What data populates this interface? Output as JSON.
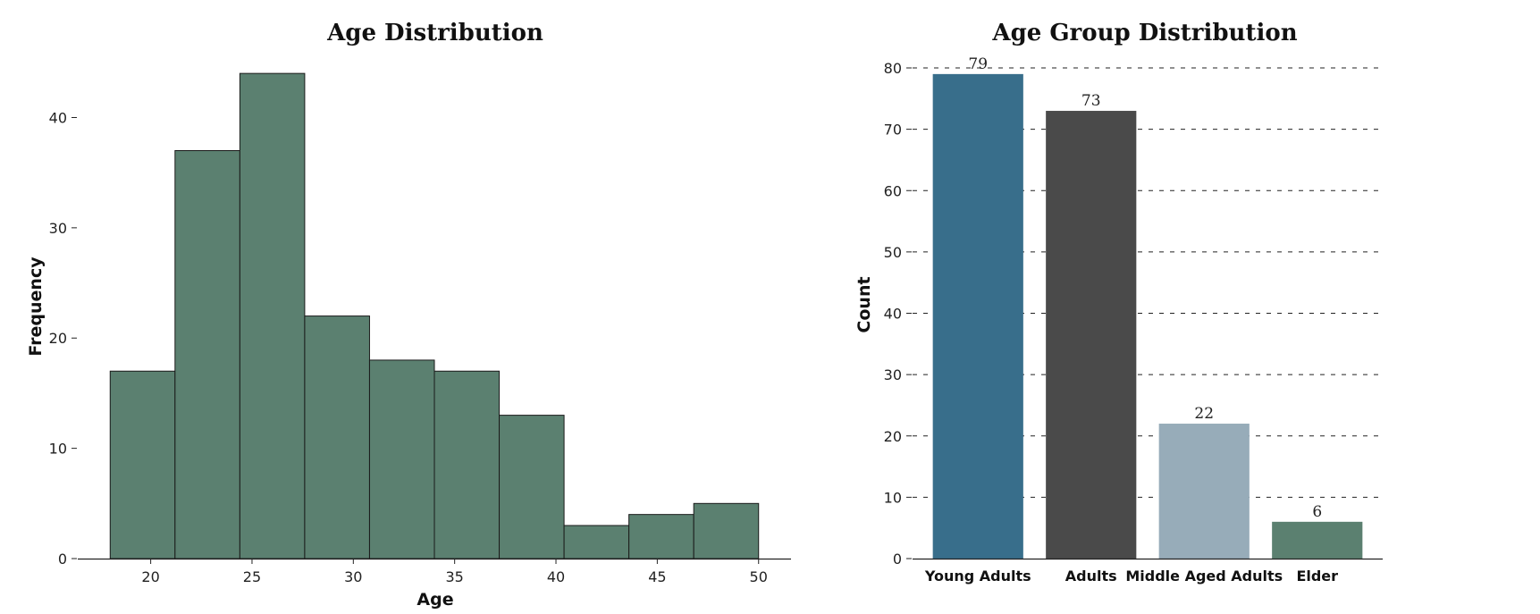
{
  "chart_data": [
    {
      "type": "bar",
      "title": "Age Distribution",
      "xlabel": "Age",
      "ylabel": "Frequency",
      "bins": [
        {
          "start": 18.0,
          "end": 21.2,
          "count": 17
        },
        {
          "start": 21.2,
          "end": 24.4,
          "count": 37
        },
        {
          "start": 24.4,
          "end": 27.6,
          "count": 44
        },
        {
          "start": 27.6,
          "end": 30.8,
          "count": 22
        },
        {
          "start": 30.8,
          "end": 34.0,
          "count": 18
        },
        {
          "start": 34.0,
          "end": 37.2,
          "count": 17
        },
        {
          "start": 37.2,
          "end": 40.4,
          "count": 13
        },
        {
          "start": 40.4,
          "end": 43.6,
          "count": 3
        },
        {
          "start": 43.6,
          "end": 46.8,
          "count": 4
        },
        {
          "start": 46.8,
          "end": 50.0,
          "count": 5
        }
      ],
      "xticks": [
        "20",
        "25",
        "30",
        "35",
        "40",
        "45",
        "50"
      ],
      "yticks": [
        "0",
        "10",
        "20",
        "30",
        "40"
      ],
      "xlim": [
        16.4,
        51.6
      ],
      "ylim": [
        0,
        46.2
      ],
      "bar_color": "#5b8070",
      "edge_color": "#1a1a1a",
      "grid": false
    },
    {
      "type": "bar",
      "title": "Age Group Distribution",
      "xlabel": "",
      "ylabel": "Count",
      "categories": [
        "Young Adults",
        "Adults",
        "Middle Aged Adults",
        "Elder"
      ],
      "values": [
        79,
        73,
        22,
        6
      ],
      "data_labels": [
        "79",
        "73",
        "22",
        "6"
      ],
      "colors": [
        "#386e8b",
        "#4a4a4a",
        "#97acb9",
        "#5b8070"
      ],
      "yticks": [
        "0",
        "10",
        "20",
        "30",
        "40",
        "50",
        "60",
        "70",
        "80"
      ],
      "ylim": [
        0,
        80
      ],
      "grid": "horizontal dashed"
    }
  ]
}
